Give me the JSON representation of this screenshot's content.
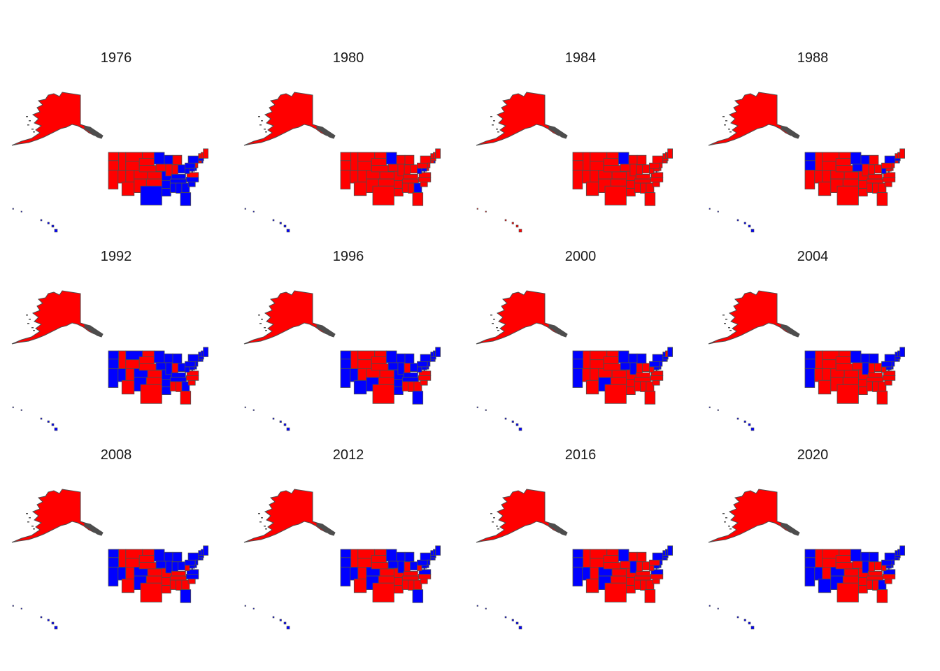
{
  "colors": {
    "dem": "#0000ff",
    "rep": "#ff0000",
    "border": "#4d4d4d",
    "background": "#ffffff"
  },
  "years": [
    {
      "label": "1976",
      "winner": "dem"
    },
    {
      "label": "1980",
      "winner": "rep"
    },
    {
      "label": "1984",
      "winner": "rep"
    },
    {
      "label": "1988",
      "winner": "rep"
    },
    {
      "label": "1992",
      "winner": "dem"
    },
    {
      "label": "1996",
      "winner": "dem"
    },
    {
      "label": "2000",
      "winner": "rep"
    },
    {
      "label": "2004",
      "winner": "rep"
    },
    {
      "label": "2008",
      "winner": "dem"
    },
    {
      "label": "2012",
      "winner": "dem"
    },
    {
      "label": "2016",
      "winner": "rep"
    },
    {
      "label": "2020",
      "winner": "dem"
    }
  ],
  "blue_states": {
    "1976": [
      "MN",
      "WI",
      "AR",
      "LA",
      "MS",
      "AL",
      "GA",
      "FL",
      "SC",
      "NC",
      "TN",
      "KY",
      "OH",
      "PA",
      "NY",
      "MA",
      "RI",
      "WV",
      "MD",
      "DE",
      "DC",
      "TX",
      "MO",
      "HI"
    ],
    "1980": [
      "MN",
      "GA",
      "WV",
      "MD",
      "RI",
      "DC",
      "HI"
    ],
    "1984": [
      "MN",
      "DC"
    ],
    "1988": [
      "WA",
      "OR",
      "MN",
      "WI",
      "IA",
      "WV",
      "NY",
      "MA",
      "RI",
      "HI",
      "DC"
    ],
    "1992": [
      "WA",
      "OR",
      "CA",
      "NV",
      "MT",
      "CO",
      "NM",
      "MN",
      "WI",
      "IA",
      "MO",
      "IL",
      "MI",
      "OH",
      "PA",
      "NY",
      "VT",
      "NH",
      "ME",
      "MA",
      "RI",
      "CT",
      "NJ",
      "DE",
      "MD",
      "WV",
      "KY",
      "TN",
      "AR",
      "LA",
      "GA",
      "HI",
      "DC"
    ],
    "1996": [
      "WA",
      "OR",
      "CA",
      "NV",
      "AZ",
      "NM",
      "MN",
      "WI",
      "IA",
      "MO",
      "IL",
      "MI",
      "OH",
      "PA",
      "NY",
      "VT",
      "NH",
      "ME",
      "MA",
      "RI",
      "CT",
      "NJ",
      "DE",
      "MD",
      "WV",
      "KY",
      "TN",
      "AR",
      "LA",
      "FL",
      "HI",
      "DC"
    ],
    "2000": [
      "WA",
      "OR",
      "CA",
      "NM",
      "MN",
      "WI",
      "IA",
      "IL",
      "MI",
      "PA",
      "NY",
      "VT",
      "ME",
      "MA",
      "RI",
      "CT",
      "NJ",
      "DE",
      "MD",
      "HI",
      "DC"
    ],
    "2004": [
      "WA",
      "OR",
      "CA",
      "MN",
      "WI",
      "IL",
      "MI",
      "PA",
      "NY",
      "VT",
      "NH",
      "ME",
      "MA",
      "RI",
      "CT",
      "NJ",
      "DE",
      "MD",
      "HI",
      "DC"
    ],
    "2008": [
      "WA",
      "OR",
      "CA",
      "NV",
      "CO",
      "NM",
      "MN",
      "WI",
      "IA",
      "IL",
      "IN",
      "MI",
      "OH",
      "PA",
      "NY",
      "VT",
      "NH",
      "ME",
      "MA",
      "RI",
      "CT",
      "NJ",
      "DE",
      "MD",
      "VA",
      "NC",
      "FL",
      "HI",
      "DC"
    ],
    "2012": [
      "WA",
      "OR",
      "CA",
      "NV",
      "CO",
      "NM",
      "MN",
      "WI",
      "IA",
      "IL",
      "MI",
      "OH",
      "PA",
      "NY",
      "VT",
      "NH",
      "ME",
      "MA",
      "RI",
      "CT",
      "NJ",
      "DE",
      "MD",
      "VA",
      "FL",
      "HI",
      "DC"
    ],
    "2016": [
      "WA",
      "OR",
      "CA",
      "NV",
      "CO",
      "NM",
      "MN",
      "IL",
      "VA",
      "NY",
      "VT",
      "NH",
      "ME",
      "MA",
      "RI",
      "CT",
      "NJ",
      "DE",
      "MD",
      "HI",
      "DC"
    ],
    "2020": [
      "WA",
      "OR",
      "CA",
      "NV",
      "AZ",
      "CO",
      "NM",
      "MN",
      "WI",
      "IL",
      "MI",
      "PA",
      "GA",
      "VA",
      "NY",
      "VT",
      "NH",
      "ME",
      "MA",
      "RI",
      "CT",
      "NJ",
      "DE",
      "MD",
      "HI",
      "DC"
    ]
  }
}
